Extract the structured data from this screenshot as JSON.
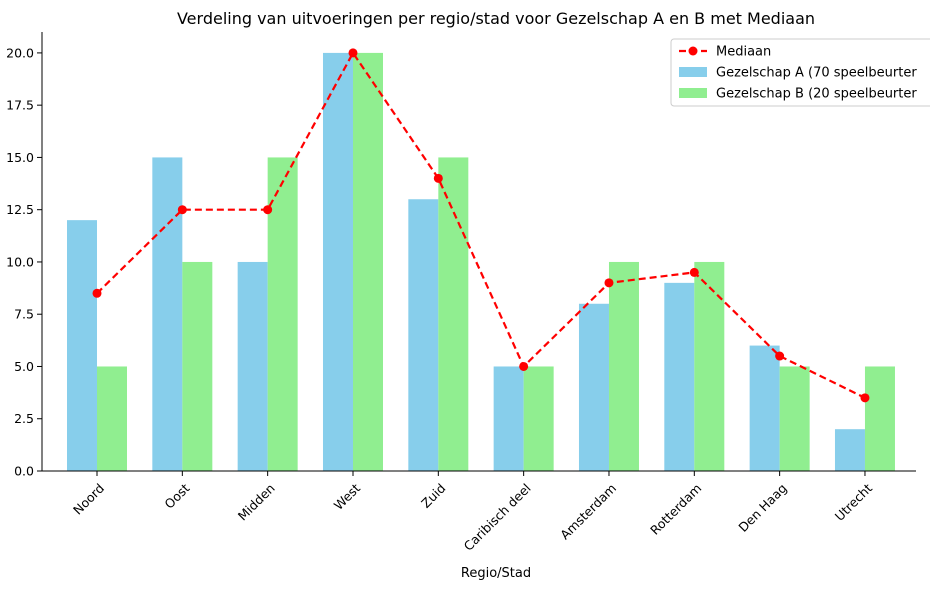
{
  "chart_data": {
    "type": "bar",
    "title": "Verdeling van uitvoeringen per regio/stad voor Gezelschap A en B met Mediaan",
    "xlabel": "Regio/Stad",
    "ylabel": "",
    "ylim": [
      0,
      21
    ],
    "yticks": [
      "0.0",
      "2.5",
      "5.0",
      "7.5",
      "10.0",
      "12.5",
      "15.0",
      "17.5",
      "20.0"
    ],
    "categories": [
      "Noord",
      "Oost",
      "Midden",
      "West",
      "Zuid",
      "Caribisch deel",
      "Amsterdam",
      "Rotterdam",
      "Den Haag",
      "Utrecht"
    ],
    "series": [
      {
        "name": "Gezelschap A (70 speelbeurten)",
        "kind": "bar",
        "color": "#87ceeb",
        "values": [
          12,
          15,
          10,
          20,
          13,
          5,
          8,
          9,
          6,
          2
        ]
      },
      {
        "name": "Gezelschap B (20 speelbeurten)",
        "kind": "bar",
        "color": "#90ee90",
        "values": [
          5,
          10,
          15,
          20,
          15,
          5,
          10,
          10,
          5,
          5
        ]
      },
      {
        "name": "Mediaan",
        "kind": "line",
        "color": "#ff0000",
        "style": "dashed",
        "marker": "circle",
        "values": [
          8.5,
          12.5,
          12.5,
          20,
          14,
          5,
          9,
          9.5,
          5.5,
          3.5
        ]
      }
    ],
    "legend": {
      "placement": "top-right",
      "entries": [
        "Mediaan",
        "Gezelschap A (70 speelbeurter",
        "Gezelschap B (20 speelbeurter"
      ]
    },
    "grid": false
  }
}
